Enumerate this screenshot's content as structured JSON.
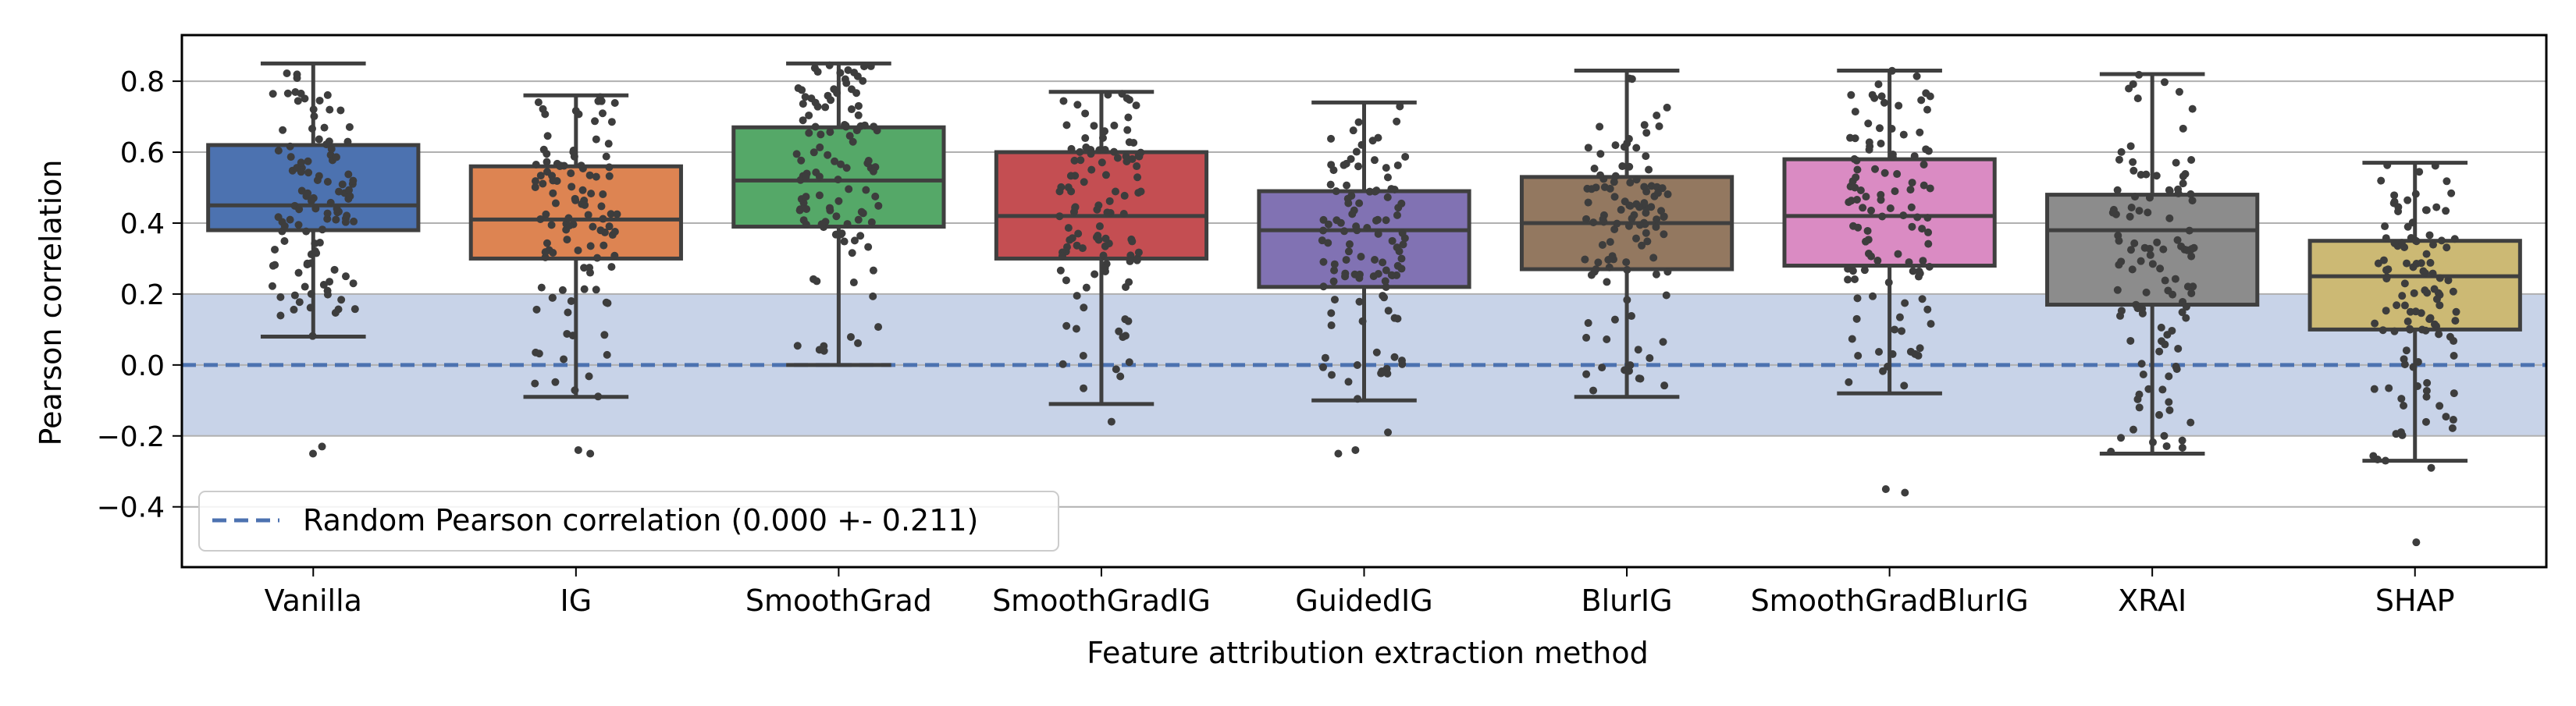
{
  "chart_data": {
    "type": "box",
    "xlabel": "Feature attribution extraction method",
    "ylabel": "Pearson correlation",
    "ylim": [
      -0.57,
      0.93
    ],
    "yticks": [
      -0.4,
      -0.2,
      0.0,
      0.2,
      0.4,
      0.6,
      0.8
    ],
    "ytick_labels": [
      "−0.4",
      "−0.2",
      "0.0",
      "0.2",
      "0.4",
      "0.6",
      "0.8"
    ],
    "grid": "horizontal",
    "legend_position": "bottom-left",
    "baseline": {
      "label": "Random Pearson correlation (0.000 +- 0.211)",
      "value": 0.0,
      "band": [
        -0.2,
        0.2
      ],
      "line_color": "#4c72b0",
      "band_color": "#c8d3e8"
    },
    "categories": [
      "Vanilla",
      "IG",
      "SmoothGrad",
      "SmoothGradIG",
      "GuidedIG",
      "BlurIG",
      "SmoothGradBlurIG",
      "XRAI",
      "SHAP"
    ],
    "boxes": [
      {
        "whisker_low": 0.08,
        "q1": 0.38,
        "median": 0.45,
        "q3": 0.62,
        "whisker_high": 0.85,
        "outliers": [
          -0.23,
          -0.25
        ],
        "color": "#4c72b0"
      },
      {
        "whisker_low": -0.09,
        "q1": 0.3,
        "median": 0.41,
        "q3": 0.56,
        "whisker_high": 0.76,
        "outliers": [
          -0.24,
          -0.25
        ],
        "color": "#dd8452"
      },
      {
        "whisker_low": 0.0,
        "q1": 0.39,
        "median": 0.52,
        "q3": 0.67,
        "whisker_high": 0.85,
        "outliers": [],
        "color": "#55a868"
      },
      {
        "whisker_low": -0.11,
        "q1": 0.3,
        "median": 0.42,
        "q3": 0.6,
        "whisker_high": 0.77,
        "outliers": [
          -0.16
        ],
        "color": "#c44e52"
      },
      {
        "whisker_low": -0.1,
        "q1": 0.22,
        "median": 0.38,
        "q3": 0.49,
        "whisker_high": 0.74,
        "outliers": [
          -0.19,
          -0.24,
          -0.25
        ],
        "color": "#8172b3"
      },
      {
        "whisker_low": -0.09,
        "q1": 0.27,
        "median": 0.4,
        "q3": 0.53,
        "whisker_high": 0.83,
        "outliers": [],
        "color": "#937860"
      },
      {
        "whisker_low": -0.08,
        "q1": 0.28,
        "median": 0.42,
        "q3": 0.58,
        "whisker_high": 0.83,
        "outliers": [
          -0.35,
          -0.36
        ],
        "color": "#da8bc3"
      },
      {
        "whisker_low": -0.25,
        "q1": 0.17,
        "median": 0.38,
        "q3": 0.48,
        "whisker_high": 0.82,
        "outliers": [],
        "color": "#8c8c8c"
      },
      {
        "whisker_low": -0.27,
        "q1": 0.1,
        "median": 0.25,
        "q3": 0.35,
        "whisker_high": 0.57,
        "outliers": [
          -0.29,
          -0.5
        ],
        "color": "#ccb974"
      }
    ],
    "points_per_category": 110,
    "point_color": "#3d3d3d",
    "box_edge_color": "#3f3f3f"
  }
}
